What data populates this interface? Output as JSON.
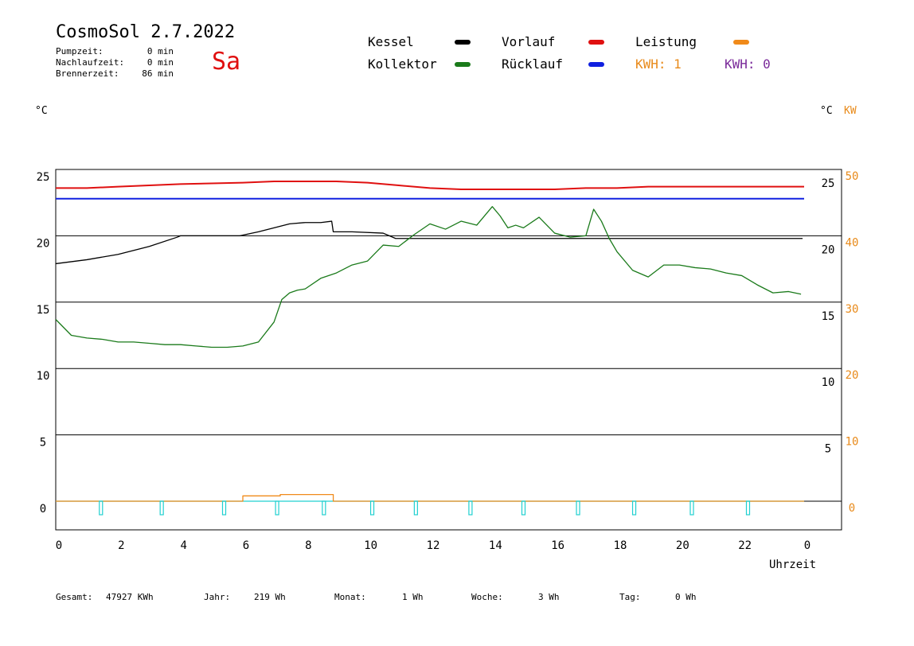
{
  "header": {
    "title": "CosmoSol 2.7.2022",
    "weekday": "Sa",
    "info": [
      {
        "label": "Pumpzeit:",
        "value": "0 min"
      },
      {
        "label": "Nachlaufzeit:",
        "value": "0 min"
      },
      {
        "label": "Brennerzeit:",
        "value": "86 min"
      }
    ]
  },
  "legend": [
    {
      "label": "Kessel",
      "color": "#000000"
    },
    {
      "label": "Vorlauf",
      "color": "#e01010"
    },
    {
      "label": "Leistung",
      "color": "#f08a1a"
    },
    {
      "label": "Kollektor",
      "color": "#1a7a1a"
    },
    {
      "label": "Rücklauf",
      "color": "#1020e0"
    }
  ],
  "kwh": [
    {
      "label": "KWH: 1",
      "color": "#e88a1a"
    },
    {
      "label": "KWH: 0",
      "color": "#7a2a9a"
    }
  ],
  "axes": {
    "left_unit": "°C",
    "right_unit_c": "°C",
    "right_unit_kw": "KW",
    "x_label": "Uhrzeit"
  },
  "footer": {
    "gesamt_label": "Gesamt:",
    "gesamt_value": "47927 KWh",
    "jahr_label": "Jahr:",
    "jahr_value": "219 Wh",
    "monat_label": "Monat:",
    "monat_value": "1 Wh",
    "woche_label": "Woche:",
    "woche_value": "3 Wh",
    "tag_label": "Tag:",
    "tag_value": "0 Wh"
  },
  "chart_data": {
    "type": "line",
    "xlabel": "Uhrzeit",
    "ylabel": "°C",
    "xlim": [
      0,
      24
    ],
    "ylim": [
      -2,
      25
    ],
    "y2_kw_lim": [
      -4,
      50
    ],
    "x_ticks": [
      "0",
      "2",
      "4",
      "6",
      "8",
      "10",
      "12",
      "14",
      "16",
      "18",
      "20",
      "22",
      "0"
    ],
    "y_ticks_left": [
      "0",
      "5",
      "10",
      "15",
      "20",
      "25"
    ],
    "y_ticks_right_c": [
      "5",
      "10",
      "15",
      "20",
      "25"
    ],
    "y_ticks_right_kw": [
      "0",
      "10",
      "20",
      "30",
      "40",
      "50"
    ],
    "grid": true,
    "series": [
      {
        "name": "Vorlauf",
        "color": "#e01010",
        "x": [
          0,
          1,
          2,
          3,
          4,
          5,
          6,
          7,
          8,
          9,
          10,
          11,
          12,
          13,
          14,
          15,
          16,
          17,
          18,
          19,
          20,
          21,
          22,
          23,
          24
        ],
        "y": [
          23.6,
          23.6,
          23.7,
          23.8,
          23.9,
          23.95,
          24.0,
          24.1,
          24.1,
          24.1,
          24.0,
          23.8,
          23.6,
          23.5,
          23.5,
          23.5,
          23.5,
          23.6,
          23.6,
          23.7,
          23.7,
          23.7,
          23.7,
          23.7,
          23.7
        ]
      },
      {
        "name": "Rücklauf",
        "color": "#1020e0",
        "x": [
          0,
          2,
          4,
          6,
          8,
          10,
          12,
          14,
          16,
          18,
          20,
          22,
          24
        ],
        "y": [
          22.8,
          22.8,
          22.8,
          22.8,
          22.8,
          22.8,
          22.8,
          22.8,
          22.8,
          22.8,
          22.8,
          22.8,
          22.8
        ]
      },
      {
        "name": "Kessel",
        "color": "#000000",
        "x": [
          0,
          1,
          2,
          3,
          3.9,
          4,
          5,
          5.9,
          6.5,
          7,
          7.5,
          8,
          8.5,
          8.85,
          8.9,
          9.5,
          10.5,
          10.9,
          11,
          12,
          14,
          16,
          18,
          20,
          22,
          23.95
        ],
        "y": [
          17.9,
          18.2,
          18.6,
          19.2,
          19.9,
          20.0,
          20.0,
          20.0,
          20.3,
          20.6,
          20.9,
          21.0,
          21.0,
          21.1,
          20.3,
          20.3,
          20.2,
          19.8,
          19.8,
          19.8,
          19.8,
          19.8,
          19.8,
          19.8,
          19.8,
          19.8
        ]
      },
      {
        "name": "Kollektor",
        "color": "#1a7a1a",
        "x": [
          0,
          0.5,
          1,
          1.5,
          2,
          2.5,
          3,
          3.5,
          4,
          4.5,
          5,
          5.5,
          6,
          6.5,
          7,
          7.25,
          7.5,
          7.75,
          8,
          8.5,
          9,
          9.5,
          10,
          10.5,
          11,
          11.5,
          12,
          12.5,
          13,
          13.5,
          14,
          14.25,
          14.5,
          14.75,
          15,
          15.5,
          16,
          16.5,
          17,
          17.25,
          17.5,
          17.75,
          18,
          18.5,
          19,
          19.5,
          20,
          20.5,
          21,
          21.5,
          22,
          22.5,
          23,
          23.5,
          23.9
        ],
        "y": [
          13.7,
          12.5,
          12.3,
          12.2,
          12.0,
          12.0,
          11.9,
          11.8,
          11.8,
          11.7,
          11.6,
          11.6,
          11.7,
          12.0,
          13.5,
          15.2,
          15.7,
          15.9,
          16.0,
          16.8,
          17.2,
          17.8,
          18.1,
          19.3,
          19.2,
          20.1,
          20.9,
          20.5,
          21.1,
          20.8,
          22.2,
          21.5,
          20.6,
          20.8,
          20.6,
          21.4,
          20.2,
          19.9,
          20.0,
          22.0,
          21.1,
          19.8,
          18.8,
          17.4,
          16.9,
          17.8,
          17.8,
          17.6,
          17.5,
          17.2,
          17.0,
          16.3,
          15.7,
          15.8,
          15.6
        ]
      },
      {
        "name": "Leistung",
        "color": "#f08a1a",
        "axis": "kw",
        "x": [
          0,
          6.0,
          6.0,
          7.2,
          7.2,
          8.9,
          8.9,
          24
        ],
        "y": [
          0,
          0,
          0.8,
          0.8,
          1.0,
          1.0,
          0,
          0
        ]
      }
    ],
    "pump_markers": {
      "color": "#20d0d0",
      "x": [
        1.45,
        3.4,
        5.4,
        7.1,
        8.6,
        10.15,
        11.55,
        13.3,
        15.0,
        16.75,
        18.55,
        20.4,
        22.2
      ]
    }
  }
}
